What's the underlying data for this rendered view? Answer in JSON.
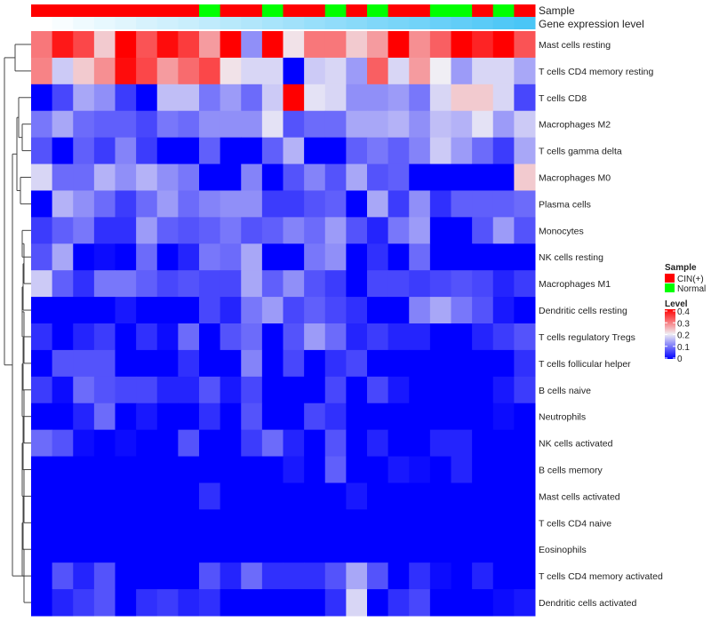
{
  "chart_data": {
    "type": "heatmap",
    "annotation_labels": {
      "sample": "Sample",
      "gene_level": "Gene expression level"
    },
    "samples": [
      "CIN(+)",
      "CIN(+)",
      "CIN(+)",
      "CIN(+)",
      "CIN(+)",
      "CIN(+)",
      "CIN(+)",
      "CIN(+)",
      "Normal",
      "CIN(+)",
      "CIN(+)",
      "Normal",
      "CIN(+)",
      "CIN(+)",
      "Normal",
      "CIN(+)",
      "Normal",
      "CIN(+)",
      "CIN(+)",
      "Normal",
      "Normal",
      "CIN(+)",
      "Normal",
      "CIN(+)"
    ],
    "gene_expression_level": [
      0,
      0.04,
      0.09,
      0.13,
      0.17,
      0.22,
      0.26,
      0.3,
      0.35,
      0.39,
      0.43,
      0.48,
      0.52,
      0.57,
      0.61,
      0.65,
      0.7,
      0.74,
      0.78,
      0.83,
      0.87,
      0.91,
      0.96,
      1
    ],
    "rows": [
      "Mast cells resting",
      "T cells CD4 memory resting",
      "T cells CD8",
      "Macrophages M2",
      "T cells gamma delta",
      "Macrophages M0",
      "Plasma cells",
      "Monocytes",
      "NK cells resting",
      "Macrophages M1",
      "Dendritic cells resting",
      "T cells regulatory  Tregs",
      "T cells follicular helper",
      "B cells naive",
      "Neutrophils",
      "NK cells activated",
      "B cells memory",
      "Mast cells activated",
      "T cells CD4 naive",
      "Eosinophils",
      "T cells CD4 memory activated",
      "Dendritic cells activated"
    ],
    "values": [
      [
        0.3,
        0.38,
        0.34,
        0.23,
        0.4,
        0.33,
        0.39,
        0.35,
        0.27,
        0.4,
        0.12,
        0.4,
        0.21,
        0.3,
        0.3,
        0.23,
        0.27,
        0.4,
        0.28,
        0.32,
        0.4,
        0.37,
        0.4,
        0.33
      ],
      [
        0.29,
        0.17,
        0.23,
        0.28,
        0.39,
        0.34,
        0.27,
        0.31,
        0.34,
        0.21,
        0.18,
        0.18,
        0,
        0.17,
        0.18,
        0.13,
        0.32,
        0.18,
        0.27,
        0.2,
        0.13,
        0.18,
        0.18,
        0.14
      ],
      [
        0,
        0.06,
        0.14,
        0.12,
        0.05,
        0,
        0.16,
        0.16,
        0.1,
        0.13,
        0.09,
        0.17,
        0.4,
        0.19,
        0.18,
        0.12,
        0.12,
        0.13,
        0.1,
        0.18,
        0.23,
        0.23,
        0.18,
        0.06
      ],
      [
        0.1,
        0.14,
        0.09,
        0.08,
        0.08,
        0.06,
        0.1,
        0.09,
        0.12,
        0.12,
        0.12,
        0.19,
        0.07,
        0.09,
        0.09,
        0.14,
        0.14,
        0.15,
        0.12,
        0.16,
        0.15,
        0.19,
        0.13,
        0.17
      ],
      [
        0.07,
        0,
        0.08,
        0.05,
        0.11,
        0.05,
        0,
        0,
        0.08,
        0,
        0,
        0.08,
        0.15,
        0,
        0,
        0.08,
        0.1,
        0.08,
        0.11,
        0.17,
        0.13,
        0.09,
        0.05,
        0.14
      ],
      [
        0.18,
        0.09,
        0.09,
        0.15,
        0.12,
        0.15,
        0.12,
        0.1,
        0,
        0,
        0.11,
        0,
        0.07,
        0.11,
        0.07,
        0.14,
        0.07,
        0.08,
        0,
        0,
        0,
        0,
        0,
        0.23
      ],
      [
        0,
        0.15,
        0.12,
        0.09,
        0.05,
        0.09,
        0.13,
        0.09,
        0.11,
        0.12,
        0.12,
        0.05,
        0.05,
        0.07,
        0.08,
        0,
        0.14,
        0.05,
        0.12,
        0.04,
        0.08,
        0.08,
        0.08,
        0.09
      ],
      [
        0.05,
        0.08,
        0.1,
        0.04,
        0.04,
        0.13,
        0.08,
        0.07,
        0.08,
        0.1,
        0.07,
        0.08,
        0.11,
        0.09,
        0.13,
        0.07,
        0.03,
        0.1,
        0.13,
        0,
        0,
        0.07,
        0.13,
        0.07
      ],
      [
        0.07,
        0.14,
        0,
        0.01,
        0,
        0.09,
        0,
        0.03,
        0.1,
        0.09,
        0.14,
        0,
        0,
        0.1,
        0.12,
        0,
        0.04,
        0,
        0.09,
        0,
        0,
        0,
        0,
        0
      ],
      [
        0.17,
        0.08,
        0.04,
        0.1,
        0.1,
        0.08,
        0.06,
        0.07,
        0.06,
        0.06,
        0.14,
        0.08,
        0.12,
        0.07,
        0.05,
        0,
        0.06,
        0.06,
        0.05,
        0.06,
        0.07,
        0.06,
        0.03,
        0.05
      ],
      [
        0,
        0,
        0,
        0,
        0.02,
        0,
        0,
        0,
        0.06,
        0.03,
        0.1,
        0.13,
        0.06,
        0.08,
        0.06,
        0.04,
        0,
        0,
        0.11,
        0.14,
        0.1,
        0.07,
        0.02,
        0
      ],
      [
        0.04,
        0,
        0.03,
        0.05,
        0,
        0.04,
        0.01,
        0.09,
        0,
        0.07,
        0.09,
        0,
        0.07,
        0.13,
        0.09,
        0.03,
        0.05,
        0.03,
        0.03,
        0,
        0,
        0.03,
        0.05,
        0.07
      ],
      [
        0,
        0.07,
        0.07,
        0.07,
        0,
        0,
        0,
        0.04,
        0,
        0,
        0.11,
        0,
        0.06,
        0,
        0.04,
        0.06,
        0,
        0,
        0,
        0,
        0,
        0,
        0,
        0.04
      ],
      [
        0.05,
        0.01,
        0.09,
        0.07,
        0.06,
        0.06,
        0.03,
        0.03,
        0.07,
        0.02,
        0.06,
        0,
        0,
        0,
        0.06,
        0,
        0.06,
        0.02,
        0,
        0,
        0,
        0,
        0.02,
        0.05
      ],
      [
        0,
        0,
        0.03,
        0.09,
        0,
        0.02,
        0,
        0,
        0.04,
        0,
        0.07,
        0,
        0,
        0.06,
        0.04,
        0,
        0,
        0,
        0,
        0,
        0,
        0,
        0.01,
        0
      ],
      [
        0.09,
        0.07,
        0.01,
        0,
        0.01,
        0,
        0,
        0.07,
        0,
        0,
        0.05,
        0.09,
        0.03,
        0,
        0.07,
        0,
        0.03,
        0,
        0,
        0.03,
        0.03,
        0,
        0,
        0
      ],
      [
        0,
        0,
        0,
        0,
        0,
        0,
        0,
        0,
        0,
        0,
        0,
        0,
        0.02,
        0,
        0.08,
        0,
        0,
        0.02,
        0.01,
        0,
        0.03,
        0,
        0,
        0
      ],
      [
        0,
        0,
        0,
        0,
        0,
        0,
        0,
        0,
        0.04,
        0,
        0,
        0,
        0,
        0,
        0,
        0.02,
        0,
        0,
        0,
        0,
        0,
        0,
        0,
        0
      ],
      [
        0,
        0,
        0,
        0,
        0,
        0,
        0,
        0,
        0,
        0,
        0,
        0,
        0,
        0,
        0,
        0,
        0,
        0,
        0,
        0,
        0,
        0,
        0,
        0
      ],
      [
        0,
        0,
        0,
        0,
        0,
        0,
        0,
        0,
        0,
        0,
        0,
        0,
        0,
        0,
        0,
        0,
        0,
        0,
        0,
        0,
        0,
        0,
        0,
        0
      ],
      [
        0,
        0.07,
        0.03,
        0.07,
        0,
        0,
        0,
        0,
        0.07,
        0.03,
        0.09,
        0.04,
        0.04,
        0.04,
        0.07,
        0.14,
        0.07,
        0,
        0.04,
        0.01,
        0,
        0.03,
        0,
        0
      ],
      [
        0,
        0.03,
        0.05,
        0.07,
        0,
        0.04,
        0.05,
        0.03,
        0.04,
        0,
        0,
        0,
        0,
        0,
        0.04,
        0.18,
        0,
        0.04,
        0.06,
        0,
        0,
        0,
        0.01,
        0.02
      ]
    ],
    "legend": {
      "sample_title": "Sample",
      "sample_entries": [
        {
          "label": "CIN(+)",
          "color": "#ff0000"
        },
        {
          "label": "Normal",
          "color": "#00ff00"
        }
      ],
      "level_title": "Level",
      "level_ticks": [
        "0.4",
        "0.3",
        "0.2",
        "0.1",
        "0"
      ],
      "level_range": [
        0,
        0.4
      ],
      "colors": {
        "low": "#0000ff",
        "mid": "#f0eef4",
        "high": "#ff0000"
      }
    }
  }
}
